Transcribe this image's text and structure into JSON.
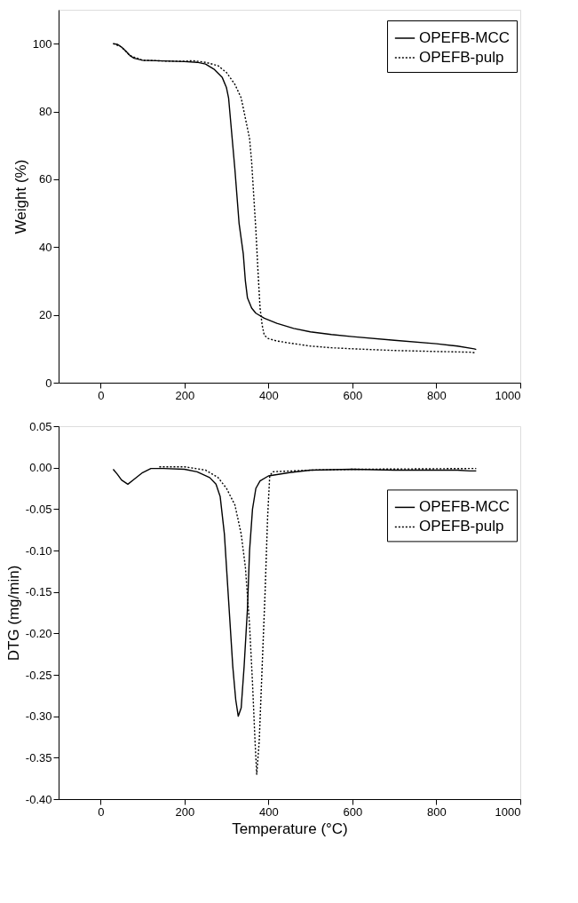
{
  "chart_data": [
    {
      "type": "line",
      "ylabel": "Weight  (%)",
      "xlim": [
        -100,
        1000
      ],
      "xticks": [
        0,
        200,
        400,
        600,
        800,
        1000
      ],
      "ylim": [
        0,
        110
      ],
      "yticks": [
        0,
        20,
        40,
        60,
        80,
        100
      ],
      "legend": "top right",
      "grid": false,
      "series": [
        {
          "name": "OPEFB-MCC",
          "color": "#000000",
          "line_style": "solid",
          "x": [
            30,
            40,
            50,
            60,
            70,
            80,
            100,
            150,
            200,
            230,
            250,
            270,
            290,
            300,
            305,
            310,
            315,
            320,
            325,
            330,
            340,
            345,
            350,
            360,
            370,
            390,
            420,
            460,
            500,
            550,
            600,
            700,
            800,
            850,
            890,
            895
          ],
          "values": [
            100,
            99.8,
            99,
            97.8,
            96.5,
            95.7,
            95.1,
            94.9,
            94.7,
            94.5,
            94,
            92.5,
            90,
            87,
            84,
            77,
            70,
            63,
            55,
            47,
            38,
            30,
            25,
            22,
            20.5,
            19,
            17.5,
            16,
            15,
            14.2,
            13.6,
            12.5,
            11.5,
            10.8,
            10,
            9.8
          ]
        },
        {
          "name": "OPEFB-pulp",
          "color": "#000000",
          "line_style": "dotted",
          "x": [
            30,
            50,
            70,
            100,
            150,
            200,
            220,
            250,
            280,
            300,
            320,
            335,
            345,
            355,
            360,
            365,
            370,
            375,
            380,
            385,
            390,
            400,
            420,
            450,
            500,
            550,
            600,
            700,
            800,
            880,
            895
          ],
          "values": [
            100,
            99,
            96.5,
            95.1,
            94.9,
            94.8,
            95,
            94.5,
            93.5,
            91.5,
            88,
            84,
            78,
            72,
            65,
            55,
            45,
            33,
            22,
            17,
            14,
            13,
            12.3,
            11.7,
            10.8,
            10.3,
            10,
            9.5,
            9.2,
            9,
            8.8
          ]
        }
      ]
    },
    {
      "type": "line",
      "xlabel": "Temperature (°C)",
      "ylabel": "DTG (mg/min)",
      "xlim": [
        -100,
        1000
      ],
      "xticks": [
        0,
        200,
        400,
        600,
        800,
        1000
      ],
      "ylim": [
        -0.4,
        0.05
      ],
      "yticks": [
        {
          "value": -0.4,
          "label": "-0.40"
        },
        {
          "value": -0.35,
          "label": "-0.35"
        },
        {
          "value": -0.3,
          "label": "-0.30"
        },
        {
          "value": -0.25,
          "label": "-0.25"
        },
        {
          "value": -0.2,
          "label": "-0.20"
        },
        {
          "value": -0.15,
          "label": "-0.15"
        },
        {
          "value": -0.1,
          "label": "-0.10"
        },
        {
          "value": -0.05,
          "label": "-0.05"
        },
        {
          "value": 0,
          "label": "0.00"
        },
        {
          "value": 0.05,
          "label": "0.05"
        }
      ],
      "legend": "right",
      "grid": false,
      "series": [
        {
          "name": "OPEFB-MCC",
          "color": "#000000",
          "line_style": "solid",
          "x": [
            30,
            40,
            50,
            65,
            80,
            100,
            120,
            150,
            200,
            230,
            260,
            275,
            285,
            295,
            305,
            315,
            322,
            328,
            335,
            342,
            350,
            355,
            362,
            370,
            380,
            400,
            450,
            500,
            600,
            700,
            850,
            880,
            895
          ],
          "values": [
            -0.002,
            -0.008,
            -0.015,
            -0.02,
            -0.014,
            -0.006,
            -0.001,
            -0.001,
            -0.002,
            -0.005,
            -0.012,
            -0.02,
            -0.035,
            -0.08,
            -0.16,
            -0.24,
            -0.28,
            -0.3,
            -0.29,
            -0.24,
            -0.17,
            -0.1,
            -0.05,
            -0.025,
            -0.016,
            -0.01,
            -0.006,
            -0.003,
            -0.002,
            -0.003,
            -0.003,
            -0.004,
            -0.004
          ]
        },
        {
          "name": "OPEFB-pulp",
          "color": "#000000",
          "line_style": "dotted",
          "x": [
            140,
            200,
            250,
            280,
            300,
            320,
            335,
            345,
            355,
            362,
            368,
            372,
            378,
            385,
            392,
            398,
            403,
            410,
            500,
            600,
            895
          ],
          "values": [
            0.001,
            0.001,
            -0.003,
            -0.012,
            -0.025,
            -0.045,
            -0.08,
            -0.12,
            -0.19,
            -0.26,
            -0.33,
            -0.37,
            -0.33,
            -0.24,
            -0.15,
            -0.06,
            -0.01,
            -0.005,
            -0.003,
            -0.002,
            -0.001
          ]
        }
      ]
    }
  ]
}
